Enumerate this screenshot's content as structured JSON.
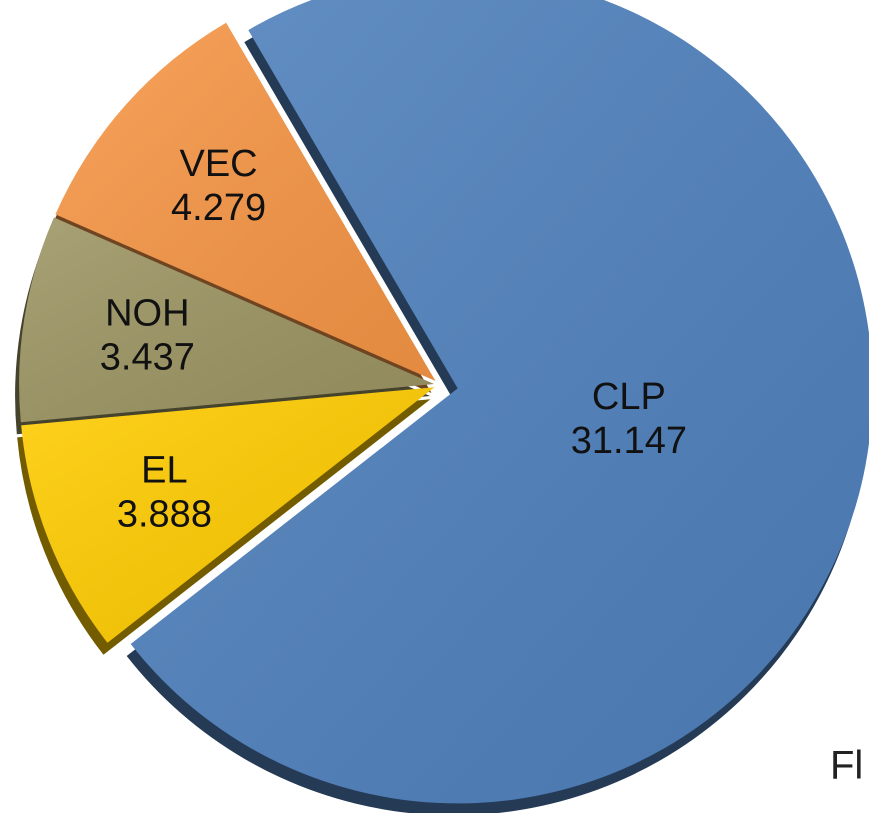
{
  "chart_data": {
    "type": "pie",
    "categories": [
      "CLP",
      "EL",
      "NOH",
      "VEC"
    ],
    "values": [
      31.147,
      3.888,
      3.437,
      4.279
    ],
    "colors": [
      "#4f81bd",
      "#ffcc00",
      "#9c9563",
      "#f79646"
    ],
    "annotation": "Fl"
  }
}
